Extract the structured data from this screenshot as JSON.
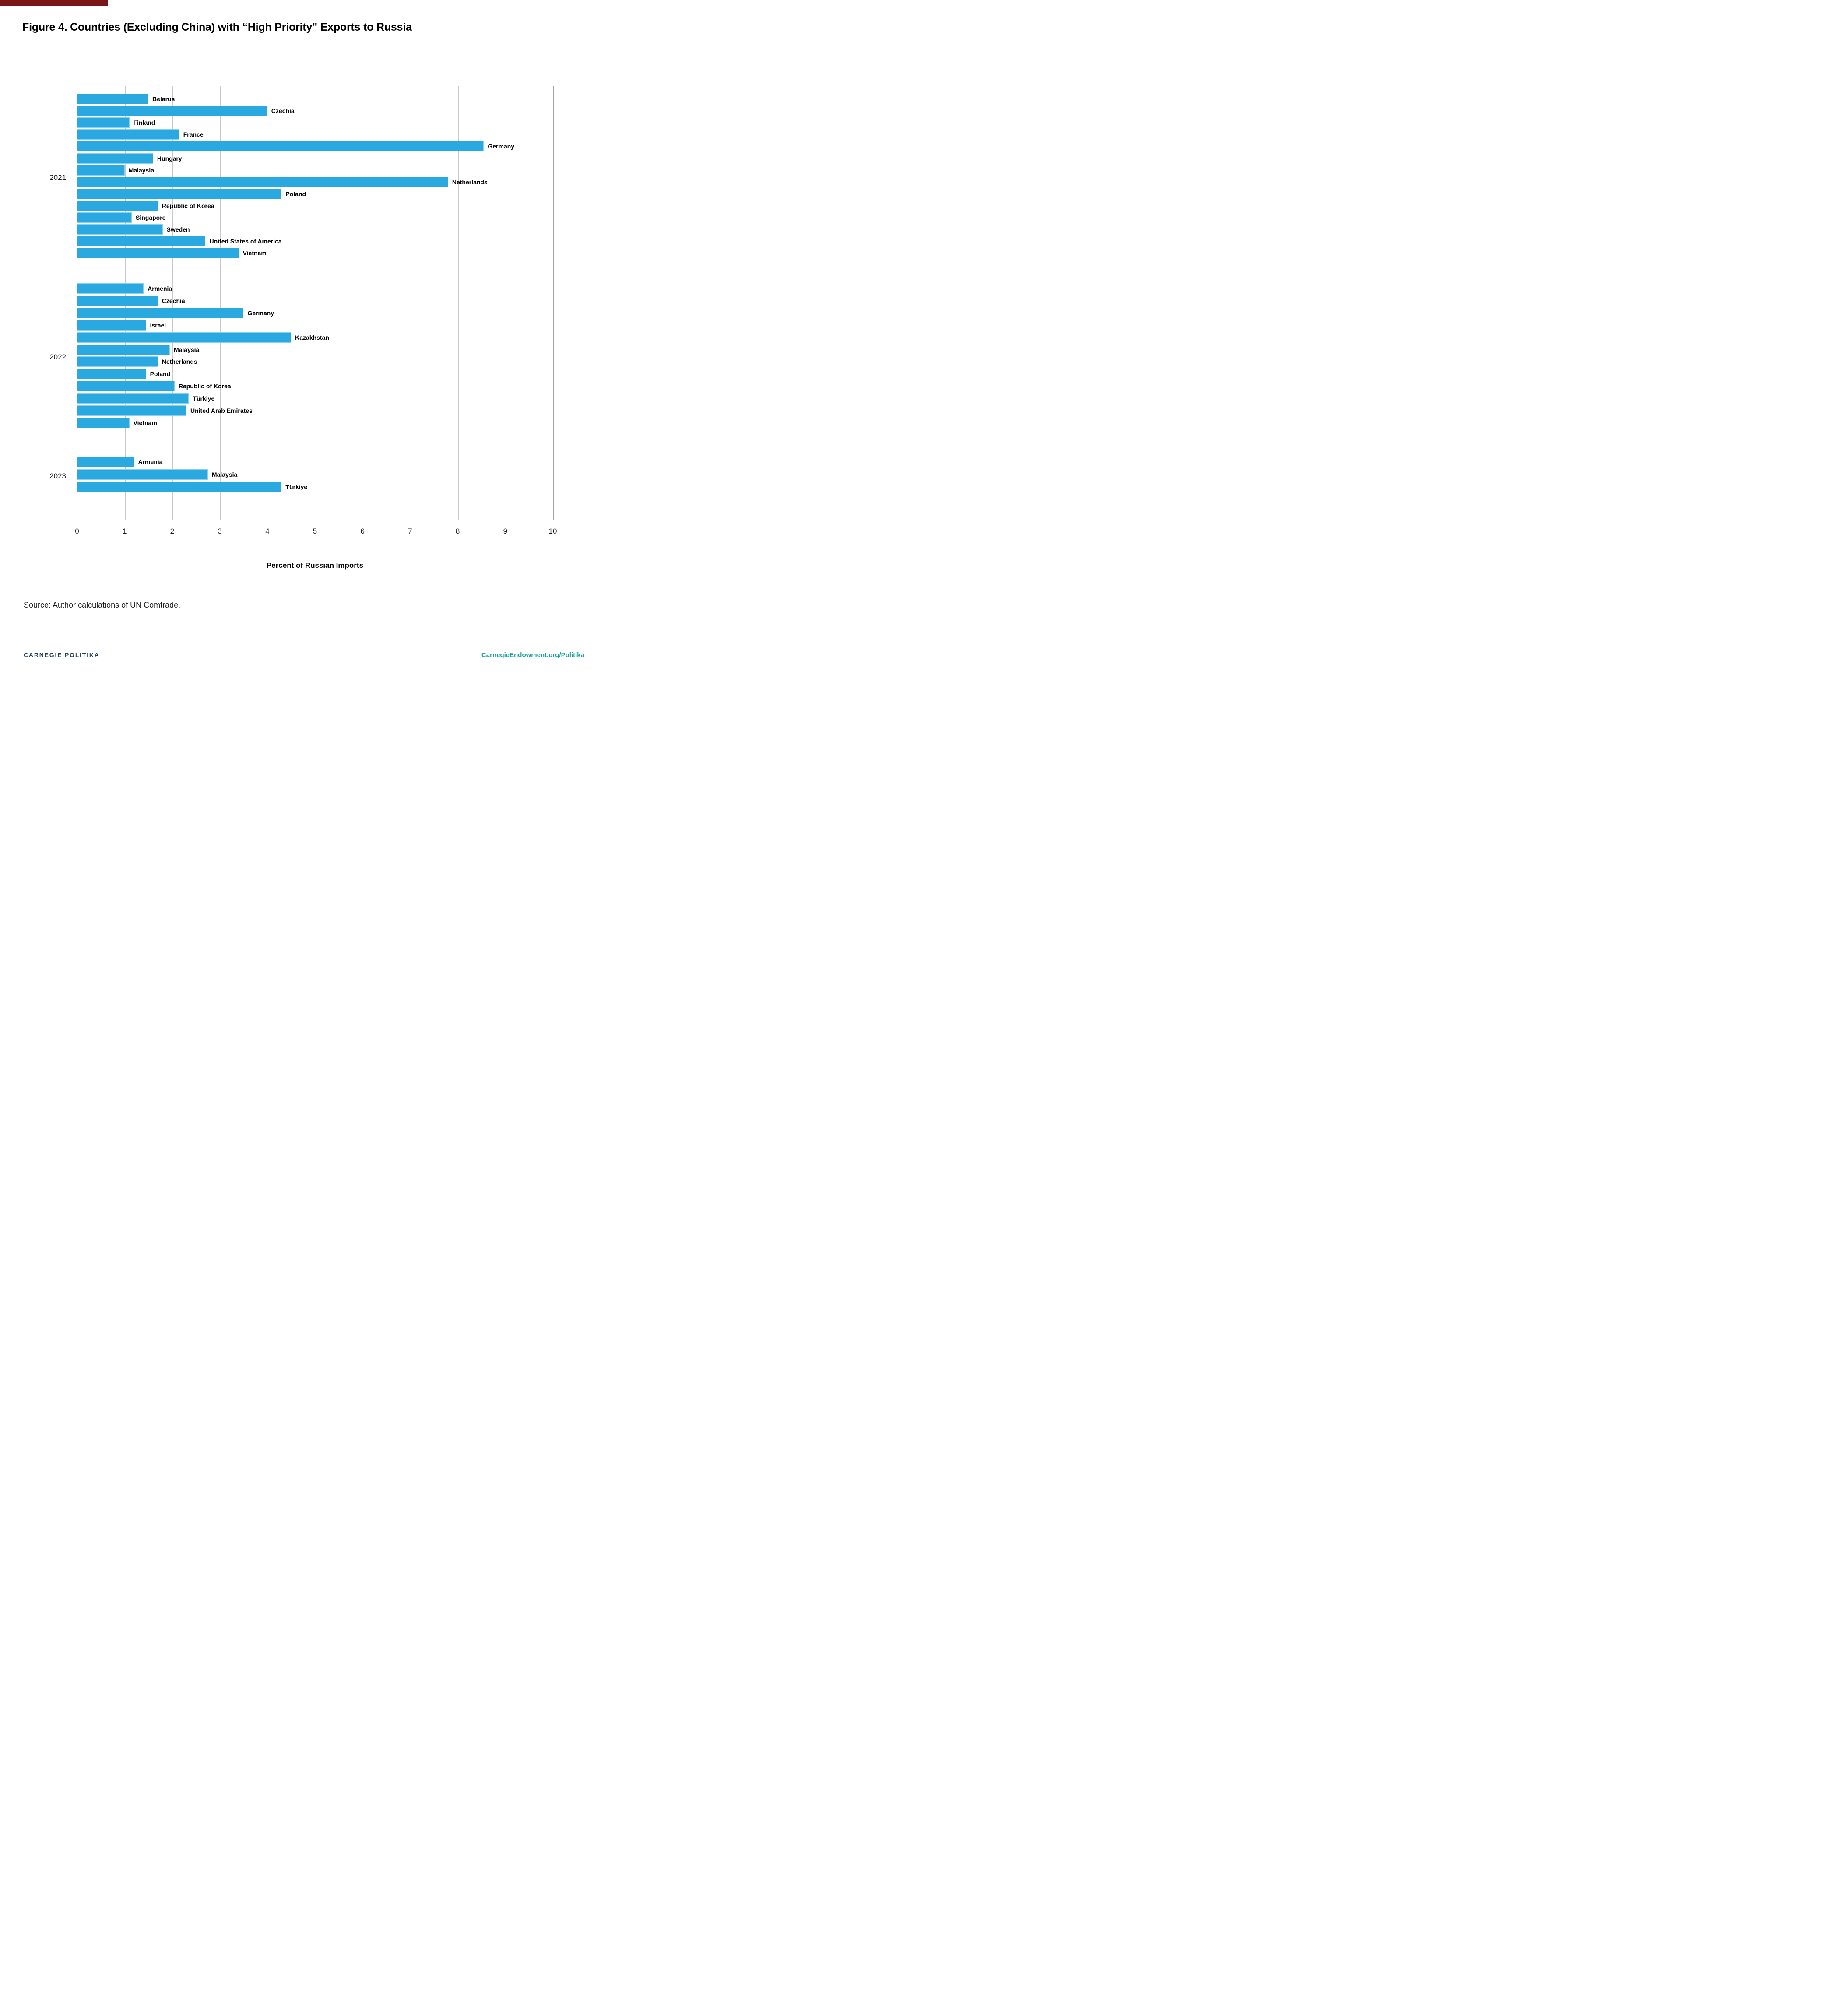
{
  "page_title": "Figure 4. Countries (Excluding China) with “High Priority\" Exports to Russia",
  "top_strip_color": "#7b1518",
  "chart_data": {
    "type": "bar",
    "orientation": "horizontal",
    "title": "Figure 4. Countries (Excluding China) with “High Priority\" Exports to Russia",
    "xlabel": "Percent of Russian Imports",
    "xlim": [
      0,
      10
    ],
    "xticks": [
      "0",
      "1",
      "2",
      "3",
      "4",
      "5",
      "6",
      "7",
      "8",
      "9",
      "10"
    ],
    "grid": true,
    "legend": "none",
    "bar_color": "#29a9e0",
    "gridline_color": "#c9c9c9",
    "plot_border_color": "#a3a3a3",
    "groups": [
      {
        "year": "2021",
        "bars": [
          {
            "label": "Belarus",
            "value": 1.5
          },
          {
            "label": "Czechia",
            "value": 4.0
          },
          {
            "label": "Finland",
            "value": 1.1
          },
          {
            "label": "France",
            "value": 2.15
          },
          {
            "label": "Germany",
            "value": 8.55
          },
          {
            "label": "Hungary",
            "value": 1.6
          },
          {
            "label": "Malaysia",
            "value": 1.0
          },
          {
            "label": "Netherlands",
            "value": 7.8
          },
          {
            "label": "Poland",
            "value": 4.3
          },
          {
            "label": "Republic of Korea",
            "value": 1.7
          },
          {
            "label": "Singapore",
            "value": 1.15
          },
          {
            "label": "Sweden",
            "value": 1.8
          },
          {
            "label": "United States of America",
            "value": 2.7
          },
          {
            "label": "Vietnam",
            "value": 3.4
          }
        ]
      },
      {
        "year": "2022",
        "bars": [
          {
            "label": "Armenia",
            "value": 1.4
          },
          {
            "label": "Czechia",
            "value": 1.7
          },
          {
            "label": "Germany",
            "value": 3.5
          },
          {
            "label": "Israel",
            "value": 1.45
          },
          {
            "label": "Kazakhstan",
            "value": 4.5
          },
          {
            "label": "Malaysia",
            "value": 1.95
          },
          {
            "label": "Netherlands",
            "value": 1.7
          },
          {
            "label": "Poland",
            "value": 1.45
          },
          {
            "label": "Republic of Korea",
            "value": 2.05
          },
          {
            "label": "Türkiye",
            "value": 2.35
          },
          {
            "label": "United Arab Emirates",
            "value": 2.3
          },
          {
            "label": "Vietnam",
            "value": 1.1
          }
        ]
      },
      {
        "year": "2023",
        "bars": [
          {
            "label": "Armenia",
            "value": 1.2
          },
          {
            "label": "Malaysia",
            "value": 2.75
          },
          {
            "label": "Türkiye",
            "value": 4.3
          }
        ]
      }
    ]
  },
  "source": "Source: Author calculations of UN Comtrade.",
  "footer": {
    "left": "CARNEGIE POLITIKA",
    "left_color": "#1c3f5e",
    "right": "CarnegieEndowment.org/Politika",
    "right_color": "#17a398"
  }
}
